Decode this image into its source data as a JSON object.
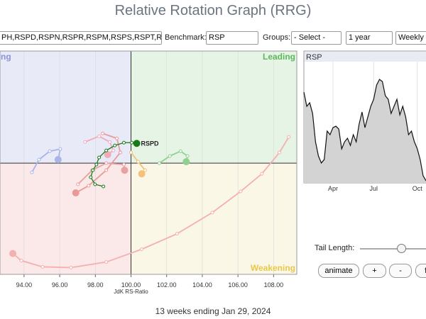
{
  "header": {
    "title": "Relative Rotation Graph (RRG)"
  },
  "toolbar": {
    "symbols": "PH,RSPD,RSPN,RSPR,RSPM,RSPS,RSPT,RS",
    "benchmark_label": "Benchmark:",
    "benchmark": "RSP",
    "groups_label": "Groups:",
    "groups": "- Select -",
    "period": "1 year",
    "interval": "Weekly"
  },
  "chart_data": [
    {
      "type": "rrg",
      "xlabel": "JdK RS-Ratio",
      "xlim": [
        92.65,
        109.3
      ],
      "ylim": [
        93.75,
        106.3
      ],
      "center": 100,
      "xticks": [
        {
          "value": 94,
          "label": "94.00"
        },
        {
          "value": 96,
          "label": "96.00"
        },
        {
          "value": 98,
          "label": "98.00"
        },
        {
          "value": 100,
          "label": "100.00"
        },
        {
          "value": 102,
          "label": "102.00"
        },
        {
          "value": 104,
          "label": "104.00"
        },
        {
          "value": 106,
          "label": "106.00"
        },
        {
          "value": 108,
          "label": "108.00"
        }
      ],
      "grid": true,
      "quadrants": {
        "improving": {
          "label": "ng",
          "color": "#e8eaf8"
        },
        "leading": {
          "label": "Leading",
          "color": "#e6f4e6",
          "text_color": "#5cb85c"
        },
        "weakening": {
          "label": "Weakening",
          "color": "#fbf7e6",
          "text_color": "#e8c84a"
        },
        "lagging": {
          "color": "#fbe9e9"
        }
      },
      "series": [
        {
          "color": "#f4b0b0",
          "x": [
            108.85,
            108.33,
            107.34,
            106.15,
            104.56,
            102.58,
            100.6,
            98.61,
            96.63,
            95.04,
            93.85,
            93.37
          ],
          "values": [
            101.47,
            100.6,
            99.4,
            98.41,
            97.22,
            96.03,
            95.16,
            94.44,
            94.13,
            94.17,
            94.52,
            94.92
          ]
        },
        {
          "color": "#a9b4e8",
          "x": [
            94.44,
            94.84,
            95.44,
            96.03,
            95.91
          ],
          "values": [
            99.48,
            100.2,
            100.67,
            100.79,
            100.2
          ]
        },
        {
          "color": "#f0aab8",
          "x": [
            97.42,
            98.21,
            98.81,
            99.01,
            98.69
          ],
          "values": [
            101.19,
            101.51,
            101.19,
            100.71,
            100.48
          ]
        },
        {
          "color": "#e89a9a",
          "x": [
            98.41,
            99.21,
            99.4,
            98.61,
            97.62,
            96.9
          ],
          "values": [
            101.67,
            101.39,
            100.6,
            99.6,
            98.73,
            98.33
          ]
        },
        {
          "color": "#e8a0a0",
          "x": [
            97.02,
            97.82,
            98.61,
            99.6,
            99.64
          ],
          "values": [
            98.81,
            99.6,
            100.0,
            99.92,
            99.6
          ]
        },
        {
          "color": "#f2c27a",
          "x": [
            100.0,
            100.4,
            100.79,
            100.6
          ],
          "values": [
            100.6,
            100.08,
            99.6,
            99.4
          ]
        },
        {
          "color": "#8fd18f",
          "x": [
            101.59,
            102.18,
            102.78,
            103.17,
            103.1
          ],
          "values": [
            100.0,
            100.4,
            100.67,
            100.4,
            100.08
          ]
        },
        {
          "name": "RSPD",
          "color": "#1a7a1a",
          "x": [
            98.45,
            97.98,
            97.74,
            97.86,
            98.06,
            98.21,
            98.61,
            99.09,
            99.6,
            100.04,
            100.32
          ],
          "values": [
            98.69,
            98.81,
            99.21,
            99.6,
            99.92,
            100.32,
            100.71,
            100.99,
            101.15,
            101.15,
            101.11
          ]
        }
      ]
    },
    {
      "type": "area",
      "title": "RSP",
      "color": "#d3d3d3",
      "line_color": "#111111",
      "xlim": [
        0,
        42
      ],
      "ylim": [
        0,
        100
      ],
      "xticks": [
        {
          "value": 10,
          "label": "Apr"
        },
        {
          "value": 24,
          "label": "Jul"
        },
        {
          "value": 39,
          "label": "Oct"
        }
      ],
      "values": [
        76.2,
        64.3,
        67.3,
        58.3,
        34.5,
        22.6,
        16.7,
        19.6,
        43.5,
        40.5,
        46.4,
        47.6,
        45.2,
        28.6,
        34.5,
        37.5,
        31.5,
        40.5,
        34.5,
        49.4,
        59.5,
        46.4,
        55.4,
        64.3,
        70.2,
        82.1,
        86.9,
        85.1,
        73.2,
        70.2,
        58.3,
        64.3,
        70.2,
        57.1,
        64.3,
        55.4,
        40.5,
        43.5,
        34.5,
        28.6,
        19.6,
        6.0,
        1.8
      ]
    }
  ],
  "controls": {
    "tail_length_label": "Tail Length:",
    "buttons": [
      "animate",
      "+",
      "-",
      "fi"
    ]
  },
  "footer": "13 weeks ending Jan 29, 2024"
}
